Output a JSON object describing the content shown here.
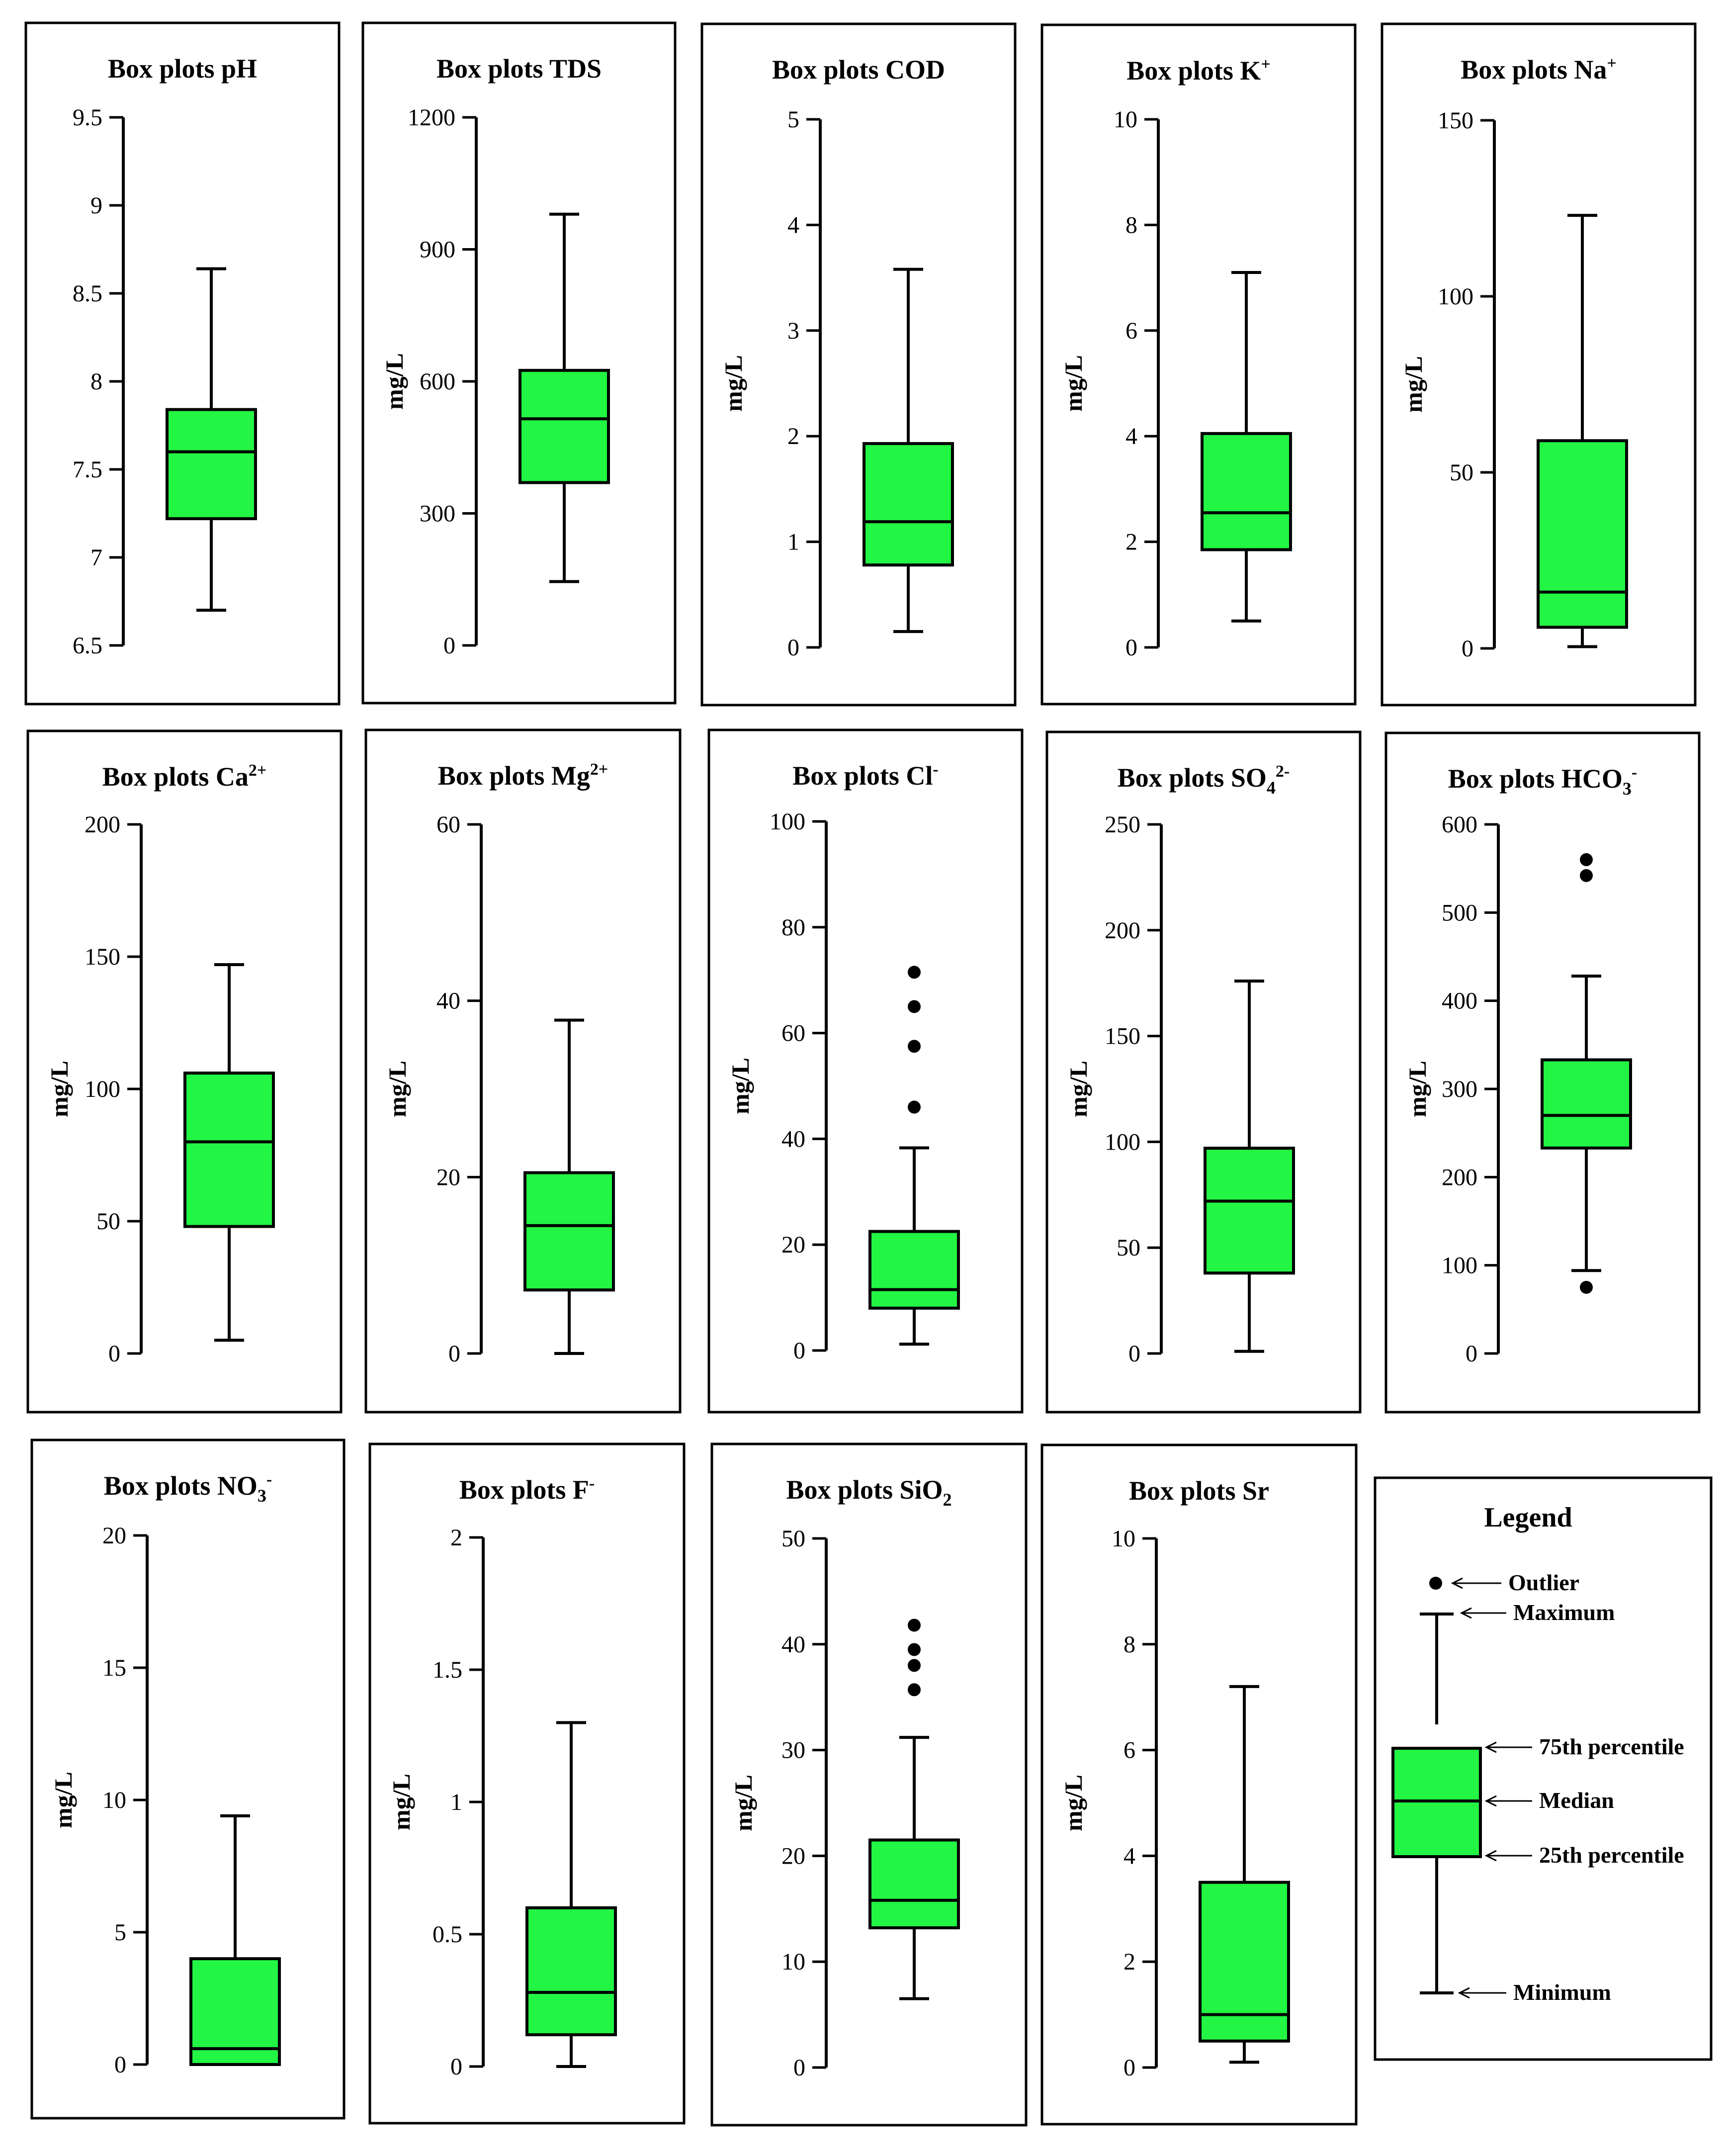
{
  "figure": {
    "box_color": "#22F543",
    "line_color": "#000000"
  },
  "chart_data": [
    {
      "type": "box",
      "title": "Box plots pH",
      "title_main": "Box plots pH",
      "title_sup": "",
      "title_sub": "",
      "ylabel": "",
      "ylim": [
        6.5,
        9.5
      ],
      "yticks": [
        "6.5",
        "7",
        "7.5",
        "8",
        "8.5",
        "9",
        "9.5"
      ],
      "stats": {
        "min": 6.7,
        "q1": 7.22,
        "median": 7.6,
        "q3": 7.84,
        "max": 8.64
      },
      "outliers": []
    },
    {
      "type": "box",
      "title": "Box plots TDS",
      "title_main": "Box plots TDS",
      "title_sup": "",
      "title_sub": "",
      "ylabel": "mg/L",
      "ylim": [
        0,
        1200
      ],
      "yticks": [
        "0",
        "300",
        "600",
        "900",
        "1200"
      ],
      "stats": {
        "min": 145,
        "q1": 370,
        "median": 515,
        "q3": 625,
        "max": 980
      },
      "outliers": []
    },
    {
      "type": "box",
      "title": "Box plots COD",
      "title_main": "Box plots COD",
      "title_sup": "",
      "title_sub": "",
      "ylabel": "mg/L",
      "ylim": [
        0,
        5
      ],
      "yticks": [
        "0",
        "1",
        "2",
        "3",
        "4",
        "5"
      ],
      "stats": {
        "min": 0.15,
        "q1": 0.78,
        "median": 1.19,
        "q3": 1.93,
        "max": 3.58
      },
      "outliers": []
    },
    {
      "type": "box",
      "title": "Box plots K+",
      "title_main": "Box plots K",
      "title_sup": "+",
      "title_sub": "",
      "ylabel": "mg/L",
      "ylim": [
        0,
        10
      ],
      "yticks": [
        "0",
        "2",
        "4",
        "6",
        "8",
        "10"
      ],
      "stats": {
        "min": 0.5,
        "q1": 1.85,
        "median": 2.55,
        "q3": 4.05,
        "max": 7.1
      },
      "outliers": []
    },
    {
      "type": "box",
      "title": "Box plots Na+",
      "title_main": "Box plots Na",
      "title_sup": "+",
      "title_sub": "",
      "ylabel": "mg/L",
      "ylim": [
        0,
        150
      ],
      "yticks": [
        "0",
        "50",
        "100",
        "150"
      ],
      "stats": {
        "min": 0.5,
        "q1": 6,
        "median": 16,
        "q3": 59,
        "max": 123
      },
      "outliers": []
    },
    {
      "type": "box",
      "title": "Box plots Ca2+",
      "title_main": "Box plots Ca",
      "title_sup": "2+",
      "title_sub": "",
      "ylabel": "mg/L",
      "ylim": [
        0,
        200
      ],
      "yticks": [
        "0",
        "50",
        "100",
        "150",
        "200"
      ],
      "stats": {
        "min": 5,
        "q1": 48,
        "median": 80,
        "q3": 106,
        "max": 147
      },
      "outliers": []
    },
    {
      "type": "box",
      "title": "Box plots Mg2+",
      "title_main": "Box plots Mg",
      "title_sup": "2+",
      "title_sub": "",
      "ylabel": "mg/L",
      "ylim": [
        0,
        60
      ],
      "yticks": [
        "0",
        "20",
        "40",
        "60"
      ],
      "stats": {
        "min": 0,
        "q1": 7.2,
        "median": 14.5,
        "q3": 20.5,
        "max": 37.8
      },
      "outliers": []
    },
    {
      "type": "box",
      "title": "Box plots Cl-",
      "title_main": "Box plots Cl",
      "title_sup": "-",
      "title_sub": "",
      "ylabel": "mg/L",
      "ylim": [
        0,
        100
      ],
      "yticks": [
        "0",
        "20",
        "40",
        "60",
        "80",
        "100"
      ],
      "stats": {
        "min": 1.2,
        "q1": 8,
        "median": 11.5,
        "q3": 22.5,
        "max": 38.3
      },
      "outliers": [
        46,
        57.5,
        65,
        71.5
      ]
    },
    {
      "type": "box",
      "title": "Box plots SO42-",
      "title_main": "Box plots SO",
      "title_sup": "2-",
      "title_sub": "4",
      "ylabel": "mg/L",
      "ylim": [
        0,
        250
      ],
      "yticks": [
        "0",
        "50",
        "100",
        "150",
        "200",
        "250"
      ],
      "stats": {
        "min": 1,
        "q1": 38,
        "median": 72,
        "q3": 97,
        "max": 176
      },
      "outliers": []
    },
    {
      "type": "box",
      "title": "Box plots HCO3-",
      "title_main": "Box plots HCO",
      "title_sup": "-",
      "title_sub": "3",
      "ylabel": "mg/L",
      "ylim": [
        0,
        600
      ],
      "yticks": [
        "0",
        "100",
        "200",
        "300",
        "400",
        "500",
        "600"
      ],
      "stats": {
        "min": 94,
        "q1": 233,
        "median": 270,
        "q3": 333,
        "max": 428
      },
      "outliers": [
        75,
        542,
        560
      ]
    },
    {
      "type": "box",
      "title": "Box plots NO3-",
      "title_main": "Box plots NO",
      "title_sup": "-",
      "title_sub": "3",
      "ylabel": "mg/L",
      "ylim": [
        0,
        20
      ],
      "yticks": [
        "0",
        "5",
        "10",
        "15",
        "20"
      ],
      "stats": {
        "min": 0,
        "q1": 0,
        "median": 0.6,
        "q3": 4,
        "max": 9.4
      },
      "outliers": []
    },
    {
      "type": "box",
      "title": "Box plots F-",
      "title_main": "Box plots F",
      "title_sup": "-",
      "title_sub": "",
      "ylabel": "mg/L",
      "ylim": [
        0,
        2
      ],
      "yticks": [
        "0",
        "0.5",
        "1",
        "1.5",
        "2"
      ],
      "stats": {
        "min": 0,
        "q1": 0.12,
        "median": 0.28,
        "q3": 0.6,
        "max": 1.3
      },
      "outliers": []
    },
    {
      "type": "box",
      "title": "Box plots SiO2",
      "title_main": "Box plots SiO",
      "title_sup": "",
      "title_sub": "2",
      "ylabel": "mg/L",
      "ylim": [
        0,
        50
      ],
      "yticks": [
        "0",
        "10",
        "20",
        "30",
        "40",
        "50"
      ],
      "stats": {
        "min": 6.5,
        "q1": 13.2,
        "median": 15.8,
        "q3": 21.5,
        "max": 31.2
      },
      "outliers": [
        35.7,
        38,
        39.5,
        41.8
      ]
    },
    {
      "type": "box",
      "title": "Box plots Sr",
      "title_main": "Box plots Sr",
      "title_sup": "",
      "title_sub": "",
      "ylabel": "mg/L",
      "ylim": [
        0,
        10
      ],
      "yticks": [
        "0",
        "2",
        "4",
        "6",
        "8",
        "10"
      ],
      "stats": {
        "min": 0.1,
        "q1": 0.5,
        "median": 1,
        "q3": 3.5,
        "max": 7.2
      },
      "outliers": []
    }
  ],
  "legend": {
    "title": "Legend",
    "outlier": "Outlier",
    "maximum": "Maximum",
    "q3": "75th percentile",
    "median": "Median",
    "q1": "25th percentile",
    "minimum": "Minimum"
  }
}
